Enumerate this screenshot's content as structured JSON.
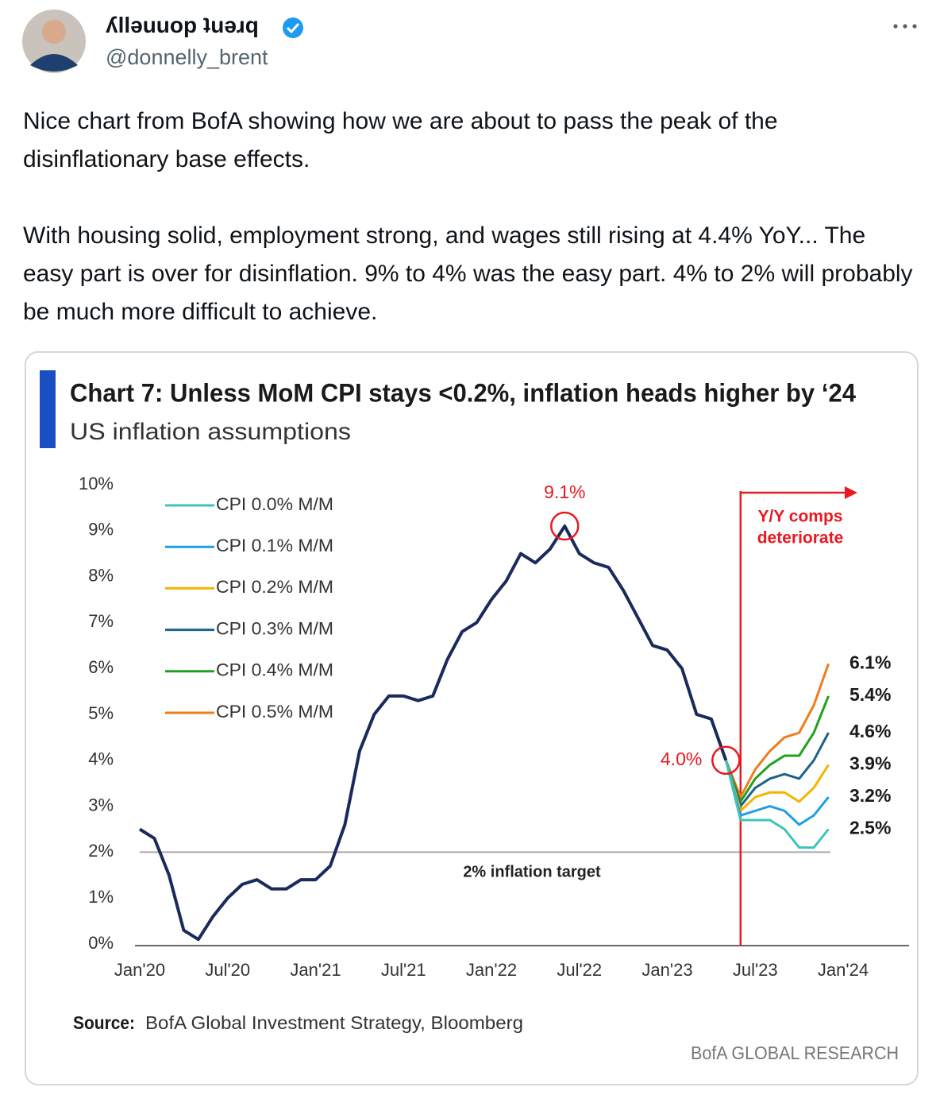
{
  "tweet": {
    "name": "ʎllǝuuop ʇuǝɹq",
    "handle": "@donnelly_brent",
    "paragraphs": [
      "Nice chart from BofA showing how we are about to pass the peak of the disinflationary base effects.",
      "With housing solid, employment strong, and wages still rising at 4.4% YoY... The easy part is over for disinflation. 9% to 4% was the easy part. 4% to 2% will probably be much more difficult to achieve."
    ]
  },
  "chart_data": {
    "type": "line",
    "title": "Chart 7: Unless MoM CPI stays <0.2%, inflation heads higher by ‘24",
    "subtitle": "US inflation assumptions",
    "categories": [
      "Jan'20",
      null,
      null,
      null,
      null,
      null,
      "Jul'20",
      null,
      null,
      null,
      null,
      null,
      "Jan'21",
      null,
      null,
      null,
      null,
      null,
      "Jul'21",
      null,
      null,
      null,
      null,
      null,
      "Jan'22",
      null,
      null,
      null,
      null,
      null,
      "Jul'22",
      null,
      null,
      null,
      null,
      null,
      "Jan'23",
      null,
      null,
      null,
      null,
      null,
      "Jul'23",
      null,
      null,
      null,
      null,
      null,
      "Jan'24"
    ],
    "ylim": [
      0,
      10
    ],
    "yticks": [
      {
        "value": 0,
        "label": "0%"
      },
      {
        "value": 1,
        "label": "1%"
      },
      {
        "value": 2,
        "label": "2%"
      },
      {
        "value": 3,
        "label": "3%"
      },
      {
        "value": 4,
        "label": "4%"
      },
      {
        "value": 5,
        "label": "5%"
      },
      {
        "value": 6,
        "label": "6%"
      },
      {
        "value": 7,
        "label": "7%"
      },
      {
        "value": 8,
        "label": "8%"
      },
      {
        "value": 9,
        "label": "9%"
      },
      {
        "value": 10,
        "label": "10%"
      }
    ],
    "grid": false,
    "legend": "upper left",
    "target": {
      "value": 2,
      "label": "2% inflation target"
    },
    "annotation": [
      "Y/Y comps",
      "deteriorate"
    ],
    "series": [
      {
        "color": "#1b2a5c",
        "values": [
          2.5,
          2.3,
          1.5,
          0.3,
          0.1,
          0.6,
          1.0,
          1.3,
          1.4,
          1.2,
          1.2,
          1.4,
          1.4,
          1.7,
          2.6,
          4.2,
          5.0,
          5.4,
          5.4,
          5.3,
          5.4,
          6.2,
          6.8,
          7.0,
          7.5,
          7.9,
          8.5,
          8.3,
          8.6,
          9.1,
          8.5,
          8.3,
          8.2,
          7.7,
          7.1,
          6.5,
          6.4,
          6.0,
          5.0,
          4.9,
          4.0,
          null,
          null,
          null,
          null,
          null,
          null,
          null,
          null
        ],
        "value_labels": [
          null,
          null,
          null,
          null,
          null,
          null,
          null,
          null,
          null,
          null,
          null,
          null,
          null,
          null,
          null,
          null,
          null,
          null,
          null,
          null,
          null,
          null,
          null,
          null,
          null,
          null,
          null,
          null,
          null,
          "9.1%",
          null,
          null,
          null,
          null,
          null,
          null,
          null,
          null,
          null,
          null,
          "4.0%",
          null,
          null,
          null,
          null,
          null,
          null,
          null,
          null
        ]
      },
      {
        "name": "CPI 0.0% M/M",
        "color": "#3cc4bb",
        "values": [
          null,
          null,
          null,
          null,
          null,
          null,
          null,
          null,
          null,
          null,
          null,
          null,
          null,
          null,
          null,
          null,
          null,
          null,
          null,
          null,
          null,
          null,
          null,
          null,
          null,
          null,
          null,
          null,
          null,
          null,
          null,
          null,
          null,
          null,
          null,
          null,
          null,
          null,
          null,
          null,
          4.0,
          2.7,
          2.7,
          2.7,
          2.5,
          2.1,
          2.1,
          2.5,
          null
        ],
        "value_labels": [
          null,
          null,
          null,
          null,
          null,
          null,
          null,
          null,
          null,
          null,
          null,
          null,
          null,
          null,
          null,
          null,
          null,
          null,
          null,
          null,
          null,
          null,
          null,
          null,
          null,
          null,
          null,
          null,
          null,
          null,
          null,
          null,
          null,
          null,
          null,
          null,
          null,
          null,
          null,
          null,
          null,
          null,
          null,
          null,
          null,
          null,
          null,
          "2.5%",
          null
        ]
      },
      {
        "name": "CPI 0.1% M/M",
        "color": "#1e9fe6",
        "values": [
          null,
          null,
          null,
          null,
          null,
          null,
          null,
          null,
          null,
          null,
          null,
          null,
          null,
          null,
          null,
          null,
          null,
          null,
          null,
          null,
          null,
          null,
          null,
          null,
          null,
          null,
          null,
          null,
          null,
          null,
          null,
          null,
          null,
          null,
          null,
          null,
          null,
          null,
          null,
          null,
          4.0,
          2.8,
          2.9,
          3.0,
          2.9,
          2.6,
          2.8,
          3.2,
          null
        ],
        "value_labels": [
          null,
          null,
          null,
          null,
          null,
          null,
          null,
          null,
          null,
          null,
          null,
          null,
          null,
          null,
          null,
          null,
          null,
          null,
          null,
          null,
          null,
          null,
          null,
          null,
          null,
          null,
          null,
          null,
          null,
          null,
          null,
          null,
          null,
          null,
          null,
          null,
          null,
          null,
          null,
          null,
          null,
          null,
          null,
          null,
          null,
          null,
          null,
          "3.2%",
          null
        ]
      },
      {
        "name": "CPI 0.2% M/M",
        "color": "#f4b400",
        "values": [
          null,
          null,
          null,
          null,
          null,
          null,
          null,
          null,
          null,
          null,
          null,
          null,
          null,
          null,
          null,
          null,
          null,
          null,
          null,
          null,
          null,
          null,
          null,
          null,
          null,
          null,
          null,
          null,
          null,
          null,
          null,
          null,
          null,
          null,
          null,
          null,
          null,
          null,
          null,
          null,
          4.0,
          2.9,
          3.2,
          3.3,
          3.3,
          3.1,
          3.4,
          3.9,
          null
        ],
        "value_labels": [
          null,
          null,
          null,
          null,
          null,
          null,
          null,
          null,
          null,
          null,
          null,
          null,
          null,
          null,
          null,
          null,
          null,
          null,
          null,
          null,
          null,
          null,
          null,
          null,
          null,
          null,
          null,
          null,
          null,
          null,
          null,
          null,
          null,
          null,
          null,
          null,
          null,
          null,
          null,
          null,
          null,
          null,
          null,
          null,
          null,
          null,
          null,
          "3.9%",
          null
        ]
      },
      {
        "name": "CPI 0.3% M/M",
        "color": "#1d6488",
        "values": [
          null,
          null,
          null,
          null,
          null,
          null,
          null,
          null,
          null,
          null,
          null,
          null,
          null,
          null,
          null,
          null,
          null,
          null,
          null,
          null,
          null,
          null,
          null,
          null,
          null,
          null,
          null,
          null,
          null,
          null,
          null,
          null,
          null,
          null,
          null,
          null,
          null,
          null,
          null,
          null,
          4.0,
          3.0,
          3.4,
          3.6,
          3.7,
          3.6,
          4.0,
          4.6,
          null
        ],
        "value_labels": [
          null,
          null,
          null,
          null,
          null,
          null,
          null,
          null,
          null,
          null,
          null,
          null,
          null,
          null,
          null,
          null,
          null,
          null,
          null,
          null,
          null,
          null,
          null,
          null,
          null,
          null,
          null,
          null,
          null,
          null,
          null,
          null,
          null,
          null,
          null,
          null,
          null,
          null,
          null,
          null,
          null,
          null,
          null,
          null,
          null,
          null,
          null,
          "4.6%",
          null
        ]
      },
      {
        "name": "CPI 0.4% M/M",
        "color": "#22a01e",
        "values": [
          null,
          null,
          null,
          null,
          null,
          null,
          null,
          null,
          null,
          null,
          null,
          null,
          null,
          null,
          null,
          null,
          null,
          null,
          null,
          null,
          null,
          null,
          null,
          null,
          null,
          null,
          null,
          null,
          null,
          null,
          null,
          null,
          null,
          null,
          null,
          null,
          null,
          null,
          null,
          null,
          4.0,
          3.1,
          3.6,
          3.9,
          4.1,
          4.1,
          4.6,
          5.4,
          null
        ],
        "value_labels": [
          null,
          null,
          null,
          null,
          null,
          null,
          null,
          null,
          null,
          null,
          null,
          null,
          null,
          null,
          null,
          null,
          null,
          null,
          null,
          null,
          null,
          null,
          null,
          null,
          null,
          null,
          null,
          null,
          null,
          null,
          null,
          null,
          null,
          null,
          null,
          null,
          null,
          null,
          null,
          null,
          null,
          null,
          null,
          null,
          null,
          null,
          null,
          "5.4%",
          null
        ]
      },
      {
        "name": "CPI 0.5% M/M",
        "color": "#ef7d1a",
        "values": [
          null,
          null,
          null,
          null,
          null,
          null,
          null,
          null,
          null,
          null,
          null,
          null,
          null,
          null,
          null,
          null,
          null,
          null,
          null,
          null,
          null,
          null,
          null,
          null,
          null,
          null,
          null,
          null,
          null,
          null,
          null,
          null,
          null,
          null,
          null,
          null,
          null,
          null,
          null,
          null,
          4.0,
          3.2,
          3.8,
          4.2,
          4.5,
          4.6,
          5.2,
          6.1,
          null
        ],
        "value_labels": [
          null,
          null,
          null,
          null,
          null,
          null,
          null,
          null,
          null,
          null,
          null,
          null,
          null,
          null,
          null,
          null,
          null,
          null,
          null,
          null,
          null,
          null,
          null,
          null,
          null,
          null,
          null,
          null,
          null,
          null,
          null,
          null,
          null,
          null,
          null,
          null,
          null,
          null,
          null,
          null,
          null,
          null,
          null,
          null,
          null,
          null,
          null,
          "6.1%",
          null
        ]
      }
    ],
    "source_label": "Source:",
    "source": "BofA Global Investment Strategy, Bloomberg",
    "credit": "BofA GLOBAL RESEARCH"
  }
}
